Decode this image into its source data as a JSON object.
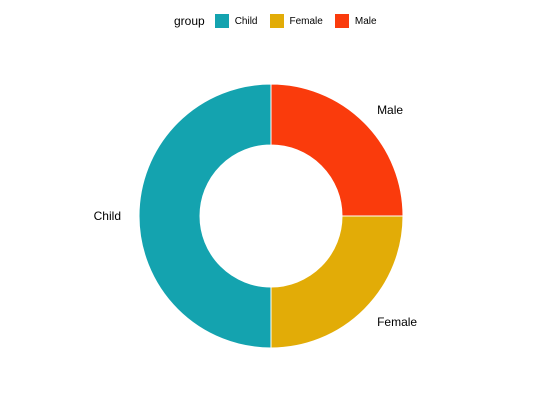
{
  "chart_data": {
    "type": "pie",
    "variant": "donut",
    "title": "",
    "legend": {
      "title": "group",
      "placement": "top"
    },
    "categories": [
      "Child",
      "Female",
      "Male"
    ],
    "values": [
      50,
      25,
      25
    ],
    "colors": [
      "#14A3AF",
      "#E2AC07",
      "#FA3B0C"
    ],
    "slice_labels": [
      "Child",
      "Female",
      "Male"
    ]
  }
}
